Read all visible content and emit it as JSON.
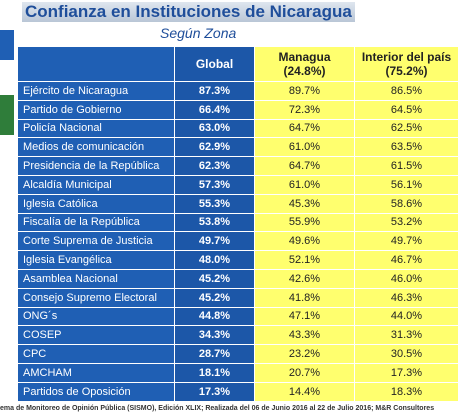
{
  "header": {
    "title": "Confianza en Instituciones de Nicaragua",
    "subtitle": "Según Zona"
  },
  "table": {
    "columns": [
      [
        "Global"
      ],
      [
        "Managua",
        "(24.8%)"
      ],
      [
        "Interior del país",
        "(75.2%)"
      ]
    ],
    "rows": [
      [
        "Ejército de Nicaragua",
        "87.3%",
        "89.7%",
        "86.5%"
      ],
      [
        "Partido de Gobierno",
        "66.4%",
        "72.3%",
        "64.5%"
      ],
      [
        "Policía Nacional",
        "63.0%",
        "64.7%",
        "62.5%"
      ],
      [
        "Medios de comunicación",
        "62.9%",
        "61.0%",
        "63.5%"
      ],
      [
        "Presidencia de la República",
        "62.3%",
        "64.7%",
        "61.5%"
      ],
      [
        "Alcaldía Municipal",
        "57.3%",
        "61.0%",
        "56.1%"
      ],
      [
        "Iglesia Católica",
        "55.3%",
        "45.3%",
        "58.6%"
      ],
      [
        "Fiscalía de la República",
        "53.8%",
        "55.9%",
        "53.2%"
      ],
      [
        "Corte Suprema de Justicia",
        "49.7%",
        "49.6%",
        "49.7%"
      ],
      [
        "Iglesia Evangélica",
        "48.0%",
        "52.1%",
        "46.7%"
      ],
      [
        "Asamblea Nacional",
        "45.2%",
        "42.6%",
        "46.0%"
      ],
      [
        "Consejo Supremo Electoral",
        "45.2%",
        "41.8%",
        "46.3%"
      ],
      [
        "ONG´s",
        "44.8%",
        "47.1%",
        "44.0%"
      ],
      [
        "COSEP",
        "34.3%",
        "43.3%",
        "31.3%"
      ],
      [
        "CPC",
        "28.7%",
        "23.2%",
        "30.5%"
      ],
      [
        "AMCHAM",
        "18.1%",
        "20.7%",
        "17.3%"
      ],
      [
        "Partidos de Oposición",
        "17.3%",
        "14.4%",
        "18.3%"
      ]
    ]
  },
  "footer": "ema de Monitoreo de Opinión Pública (SISMO), Edición XLIX; Realizada del  06 de Junio 2016 al 22 de Julio 2016; M&R Consultores"
}
